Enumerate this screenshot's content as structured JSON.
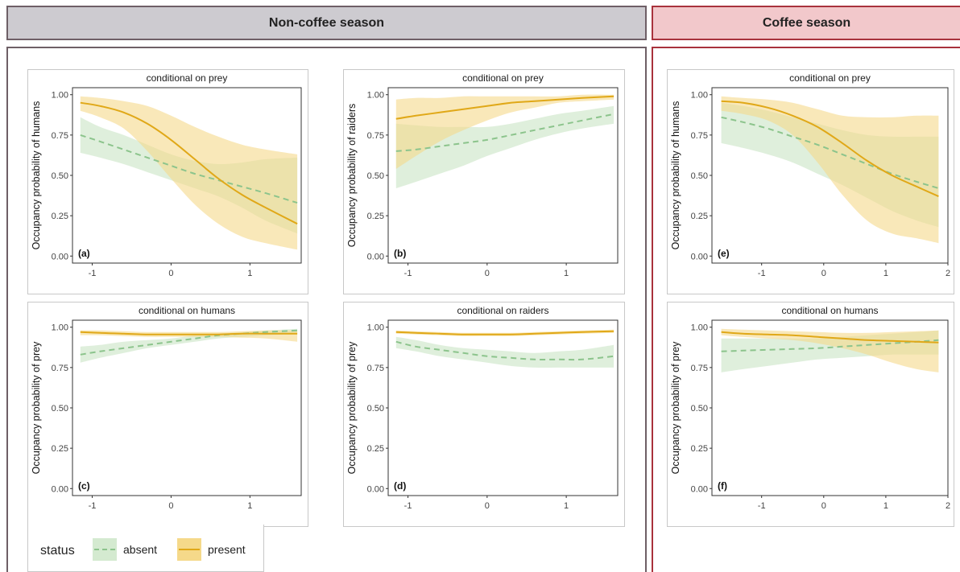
{
  "headers": {
    "non_coffee": "Non-coffee season",
    "coffee": "Coffee season"
  },
  "legend": {
    "title": "status",
    "absent": "absent",
    "present": "present"
  },
  "colors": {
    "absent_line": "#8cc48c",
    "absent_band": "#d4ead0",
    "present_line": "#e0a818",
    "present_band": "#f5d98a",
    "non_coffee_border": "#6e5f66",
    "coffee_border": "#a8323c"
  },
  "chart_data": [
    {
      "type": "line",
      "panel_tag": "(a)",
      "title": "conditional on prey",
      "ylabel": "Occupancy probability of humans",
      "xlim": [
        -1.25,
        1.65
      ],
      "ylim": [
        0,
        1
      ],
      "xticks": [
        -1,
        0,
        1
      ],
      "yticks": [
        "0.00",
        "0.25",
        "0.50",
        "0.75",
        "1.00"
      ],
      "x": [
        -1.15,
        -0.9,
        -0.6,
        -0.3,
        0.0,
        0.3,
        0.6,
        0.9,
        1.2,
        1.6
      ],
      "series": [
        {
          "name": "absent",
          "values": [
            0.75,
            0.71,
            0.66,
            0.61,
            0.56,
            0.51,
            0.47,
            0.43,
            0.39,
            0.33
          ],
          "lower": [
            0.64,
            0.61,
            0.57,
            0.52,
            0.47,
            0.42,
            0.37,
            0.3,
            0.22,
            0.14
          ],
          "upper": [
            0.86,
            0.8,
            0.75,
            0.69,
            0.63,
            0.59,
            0.57,
            0.58,
            0.6,
            0.61
          ]
        },
        {
          "name": "present",
          "values": [
            0.95,
            0.93,
            0.89,
            0.82,
            0.72,
            0.6,
            0.48,
            0.38,
            0.3,
            0.2
          ],
          "lower": [
            0.9,
            0.86,
            0.79,
            0.65,
            0.48,
            0.32,
            0.2,
            0.12,
            0.08,
            0.04
          ],
          "upper": [
            0.99,
            0.98,
            0.96,
            0.93,
            0.87,
            0.8,
            0.74,
            0.69,
            0.66,
            0.63
          ]
        }
      ]
    },
    {
      "type": "line",
      "panel_tag": "(b)",
      "title": "conditional on prey",
      "ylabel": "Occupancy probability of raiders",
      "xlim": [
        -1.25,
        1.65
      ],
      "ylim": [
        0,
        1
      ],
      "xticks": [
        -1,
        0,
        1
      ],
      "yticks": [
        "0.00",
        "0.25",
        "0.50",
        "0.75",
        "1.00"
      ],
      "x": [
        -1.15,
        -0.9,
        -0.6,
        -0.3,
        0.0,
        0.3,
        0.6,
        0.9,
        1.2,
        1.6
      ],
      "series": [
        {
          "name": "absent",
          "values": [
            0.65,
            0.66,
            0.68,
            0.7,
            0.72,
            0.75,
            0.78,
            0.81,
            0.84,
            0.88
          ],
          "lower": [
            0.42,
            0.46,
            0.51,
            0.56,
            0.62,
            0.67,
            0.72,
            0.76,
            0.79,
            0.82
          ],
          "upper": [
            0.82,
            0.81,
            0.8,
            0.8,
            0.8,
            0.82,
            0.85,
            0.88,
            0.9,
            0.93
          ]
        },
        {
          "name": "present",
          "values": [
            0.85,
            0.87,
            0.89,
            0.91,
            0.93,
            0.95,
            0.96,
            0.97,
            0.98,
            0.99
          ],
          "lower": [
            0.54,
            0.62,
            0.71,
            0.78,
            0.84,
            0.89,
            0.92,
            0.95,
            0.96,
            0.97
          ],
          "upper": [
            0.97,
            0.98,
            0.98,
            0.99,
            0.99,
            0.99,
            0.99,
            0.99,
            1.0,
            1.0
          ]
        }
      ]
    },
    {
      "type": "line",
      "panel_tag": "(e)",
      "title": "conditional on prey",
      "ylabel": "Occupancy probability of humans",
      "xlim": [
        -1.8,
        2.0
      ],
      "ylim": [
        0,
        1
      ],
      "xticks": [
        -1,
        0,
        1,
        2
      ],
      "yticks": [
        "0.00",
        "0.25",
        "0.50",
        "0.75",
        "1.00"
      ],
      "x": [
        -1.65,
        -1.3,
        -0.9,
        -0.5,
        -0.1,
        0.3,
        0.7,
        1.1,
        1.5,
        1.85
      ],
      "series": [
        {
          "name": "absent",
          "values": [
            0.86,
            0.83,
            0.79,
            0.74,
            0.69,
            0.63,
            0.57,
            0.51,
            0.46,
            0.42
          ],
          "lower": [
            0.7,
            0.67,
            0.63,
            0.58,
            0.51,
            0.44,
            0.36,
            0.28,
            0.22,
            0.18
          ],
          "upper": [
            0.95,
            0.93,
            0.9,
            0.86,
            0.82,
            0.78,
            0.75,
            0.74,
            0.74,
            0.74
          ]
        },
        {
          "name": "present",
          "values": [
            0.96,
            0.95,
            0.92,
            0.87,
            0.8,
            0.7,
            0.59,
            0.5,
            0.43,
            0.37
          ],
          "lower": [
            0.9,
            0.88,
            0.84,
            0.75,
            0.58,
            0.38,
            0.22,
            0.14,
            0.11,
            0.08
          ],
          "upper": [
            0.99,
            0.98,
            0.97,
            0.95,
            0.91,
            0.87,
            0.86,
            0.86,
            0.87,
            0.87
          ]
        }
      ]
    },
    {
      "type": "line",
      "panel_tag": "(c)",
      "title": "conditional on humans",
      "ylabel": "Occupancy probability of prey",
      "xlim": [
        -1.25,
        1.65
      ],
      "ylim": [
        0,
        1
      ],
      "xticks": [
        -1,
        0,
        1
      ],
      "yticks": [
        "0.00",
        "0.25",
        "0.50",
        "0.75",
        "1.00"
      ],
      "x": [
        -1.15,
        -0.9,
        -0.6,
        -0.3,
        0.0,
        0.3,
        0.6,
        0.9,
        1.2,
        1.6
      ],
      "series": [
        {
          "name": "absent",
          "values": [
            0.83,
            0.85,
            0.87,
            0.89,
            0.91,
            0.93,
            0.95,
            0.96,
            0.97,
            0.98
          ],
          "lower": [
            0.78,
            0.81,
            0.84,
            0.87,
            0.89,
            0.91,
            0.93,
            0.94,
            0.95,
            0.96
          ],
          "upper": [
            0.88,
            0.89,
            0.91,
            0.92,
            0.93,
            0.95,
            0.96,
            0.97,
            0.98,
            0.99
          ]
        },
        {
          "name": "present",
          "values": [
            0.97,
            0.965,
            0.96,
            0.955,
            0.955,
            0.955,
            0.955,
            0.96,
            0.96,
            0.96
          ],
          "lower": [
            0.95,
            0.95,
            0.945,
            0.94,
            0.94,
            0.94,
            0.94,
            0.935,
            0.93,
            0.91
          ],
          "upper": [
            0.98,
            0.98,
            0.975,
            0.97,
            0.97,
            0.97,
            0.97,
            0.975,
            0.98,
            0.98
          ]
        }
      ]
    },
    {
      "type": "line",
      "panel_tag": "(d)",
      "title": "conditional on raiders",
      "ylabel": "Occupancy probability of prey",
      "xlim": [
        -1.25,
        1.65
      ],
      "ylim": [
        0,
        1
      ],
      "xticks": [
        -1,
        0,
        1
      ],
      "yticks": [
        "0.00",
        "0.25",
        "0.50",
        "0.75",
        "1.00"
      ],
      "x": [
        -1.15,
        -0.9,
        -0.6,
        -0.3,
        0.0,
        0.3,
        0.6,
        0.9,
        1.2,
        1.6
      ],
      "series": [
        {
          "name": "absent",
          "values": [
            0.91,
            0.88,
            0.86,
            0.84,
            0.82,
            0.81,
            0.8,
            0.8,
            0.8,
            0.82
          ],
          "lower": [
            0.87,
            0.85,
            0.82,
            0.8,
            0.78,
            0.76,
            0.75,
            0.75,
            0.75,
            0.75
          ],
          "upper": [
            0.94,
            0.92,
            0.89,
            0.87,
            0.86,
            0.85,
            0.84,
            0.85,
            0.86,
            0.89
          ]
        },
        {
          "name": "present",
          "values": [
            0.97,
            0.965,
            0.96,
            0.955,
            0.955,
            0.955,
            0.96,
            0.965,
            0.97,
            0.975
          ],
          "lower": [
            0.96,
            0.955,
            0.95,
            0.945,
            0.945,
            0.945,
            0.95,
            0.955,
            0.96,
            0.965
          ],
          "upper": [
            0.98,
            0.975,
            0.97,
            0.965,
            0.965,
            0.965,
            0.97,
            0.975,
            0.98,
            0.985
          ]
        }
      ]
    },
    {
      "type": "line",
      "panel_tag": "(f)",
      "title": "conditional on humans",
      "ylabel": "Occupancy probability of prey",
      "xlim": [
        -1.8,
        2.0
      ],
      "ylim": [
        0,
        1
      ],
      "xticks": [
        -1,
        0,
        1,
        2
      ],
      "yticks": [
        "0.00",
        "0.25",
        "0.50",
        "0.75",
        "1.00"
      ],
      "x": [
        -1.65,
        -1.3,
        -0.9,
        -0.5,
        -0.1,
        0.3,
        0.7,
        1.1,
        1.5,
        1.85
      ],
      "series": [
        {
          "name": "absent",
          "values": [
            0.85,
            0.855,
            0.86,
            0.865,
            0.87,
            0.88,
            0.89,
            0.9,
            0.91,
            0.92
          ],
          "lower": [
            0.72,
            0.74,
            0.76,
            0.78,
            0.8,
            0.81,
            0.82,
            0.83,
            0.83,
            0.83
          ],
          "upper": [
            0.93,
            0.93,
            0.93,
            0.93,
            0.93,
            0.94,
            0.95,
            0.96,
            0.97,
            0.98
          ]
        },
        {
          "name": "present",
          "values": [
            0.97,
            0.96,
            0.955,
            0.95,
            0.94,
            0.93,
            0.92,
            0.915,
            0.91,
            0.905
          ],
          "lower": [
            0.95,
            0.94,
            0.93,
            0.92,
            0.9,
            0.87,
            0.83,
            0.78,
            0.74,
            0.72
          ],
          "upper": [
            0.99,
            0.985,
            0.98,
            0.975,
            0.97,
            0.965,
            0.965,
            0.97,
            0.975,
            0.98
          ]
        }
      ]
    }
  ]
}
